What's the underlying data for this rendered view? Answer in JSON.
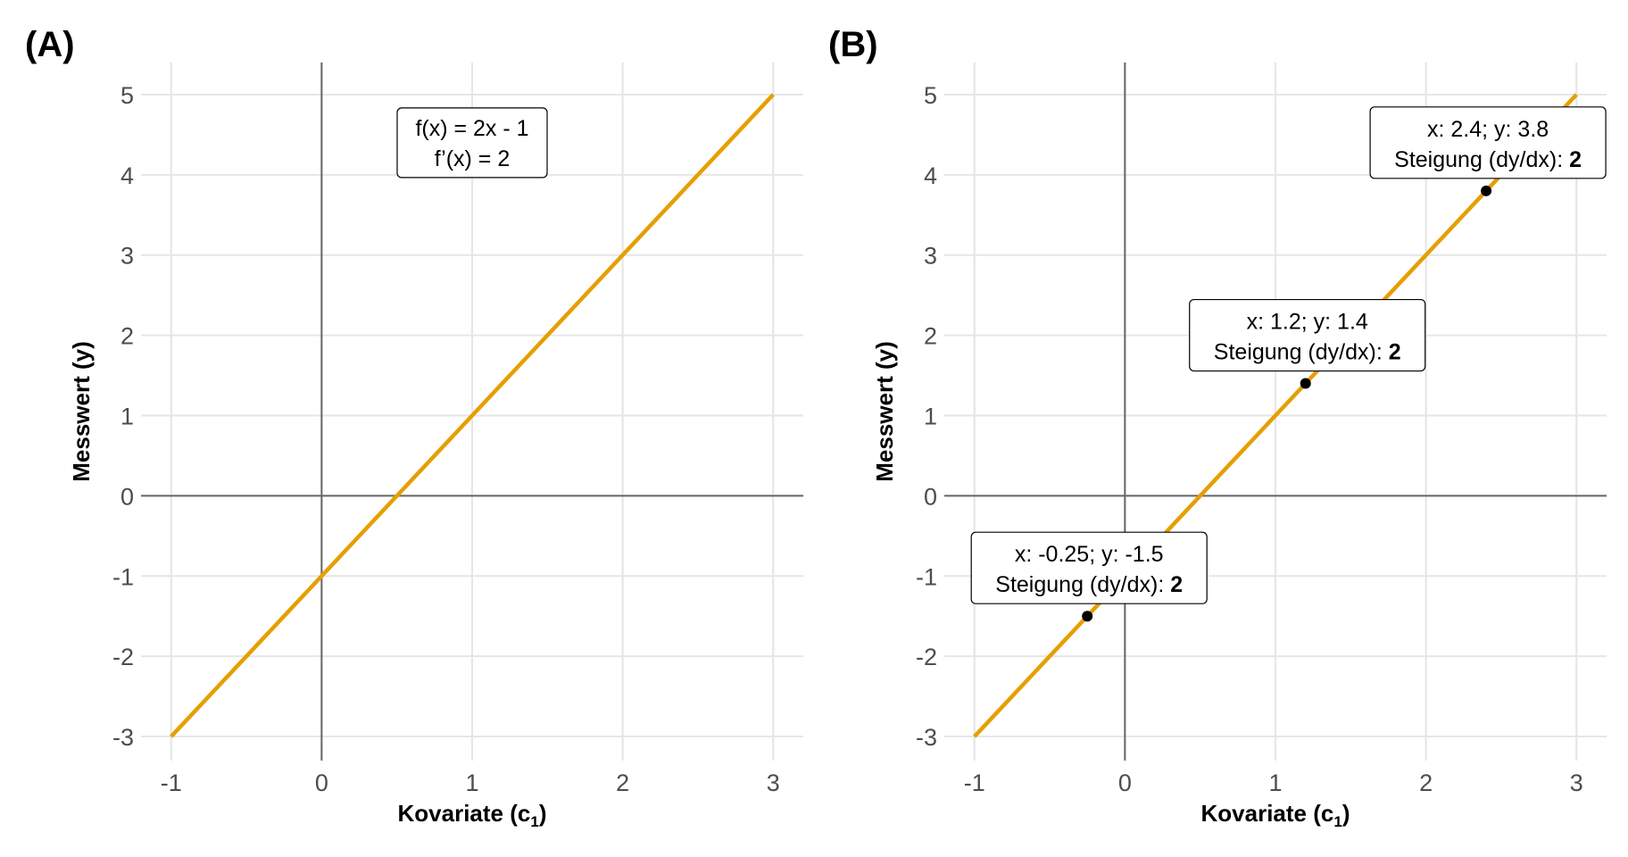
{
  "chart_data": [
    {
      "type": "line",
      "panel_label": "(A)",
      "title": "",
      "xlabel": "Kovariate (c",
      "xlabel_sub": "1",
      "xlabel_end": ")",
      "ylabel": "Messwert (y)",
      "xlim": [
        -1.2,
        3.2
      ],
      "ylim": [
        -3.3,
        5.4
      ],
      "xticks": [
        -1,
        0,
        1,
        2,
        3
      ],
      "yticks": [
        -3,
        -2,
        -1,
        0,
        1,
        2,
        3,
        4,
        5
      ],
      "xtick_labels": [
        "-1",
        "0",
        "1",
        "2",
        "3"
      ],
      "ytick_labels": [
        "-3",
        "-2",
        "-1",
        "0",
        "1",
        "2",
        "3",
        "4",
        "5"
      ],
      "grid": true,
      "line_color": "#E69F00",
      "series": [
        {
          "x": [
            -1,
            3
          ],
          "y": [
            -3,
            5
          ]
        }
      ],
      "annotation": {
        "x": 1,
        "y": 4.4,
        "lines": [
          "f(x) = 2x - 1",
          "f’(x) = 2"
        ]
      }
    },
    {
      "type": "line",
      "panel_label": "(B)",
      "title": "",
      "xlabel": "Kovariate (c",
      "xlabel_sub": "1",
      "xlabel_end": ")",
      "ylabel": "Messwert (y)",
      "xlim": [
        -1.2,
        3.2
      ],
      "ylim": [
        -3.3,
        5.4
      ],
      "xticks": [
        -1,
        0,
        1,
        2,
        3
      ],
      "yticks": [
        -3,
        -2,
        -1,
        0,
        1,
        2,
        3,
        4,
        5
      ],
      "xtick_labels": [
        "-1",
        "0",
        "1",
        "2",
        "3"
      ],
      "ytick_labels": [
        "-3",
        "-2",
        "-1",
        "0",
        "1",
        "2",
        "3",
        "4",
        "5"
      ],
      "grid": true,
      "line_color": "#E69F00",
      "series": [
        {
          "x": [
            -1,
            3
          ],
          "y": [
            -3,
            5
          ]
        }
      ],
      "points": [
        {
          "x": -0.25,
          "y": -1.5,
          "line1": "x: -0.25; y: -1.5",
          "line2_prefix": "Steigung (dy/dx): ",
          "line2_bold": "2"
        },
        {
          "x": 1.2,
          "y": 1.4,
          "line1": "x: 1.2; y: 1.4",
          "line2_prefix": "Steigung (dy/dx): ",
          "line2_bold": "2"
        },
        {
          "x": 2.4,
          "y": 3.8,
          "line1": "x: 2.4; y: 3.8",
          "line2_prefix": "Steigung (dy/dx): ",
          "line2_bold": "2"
        }
      ]
    }
  ]
}
